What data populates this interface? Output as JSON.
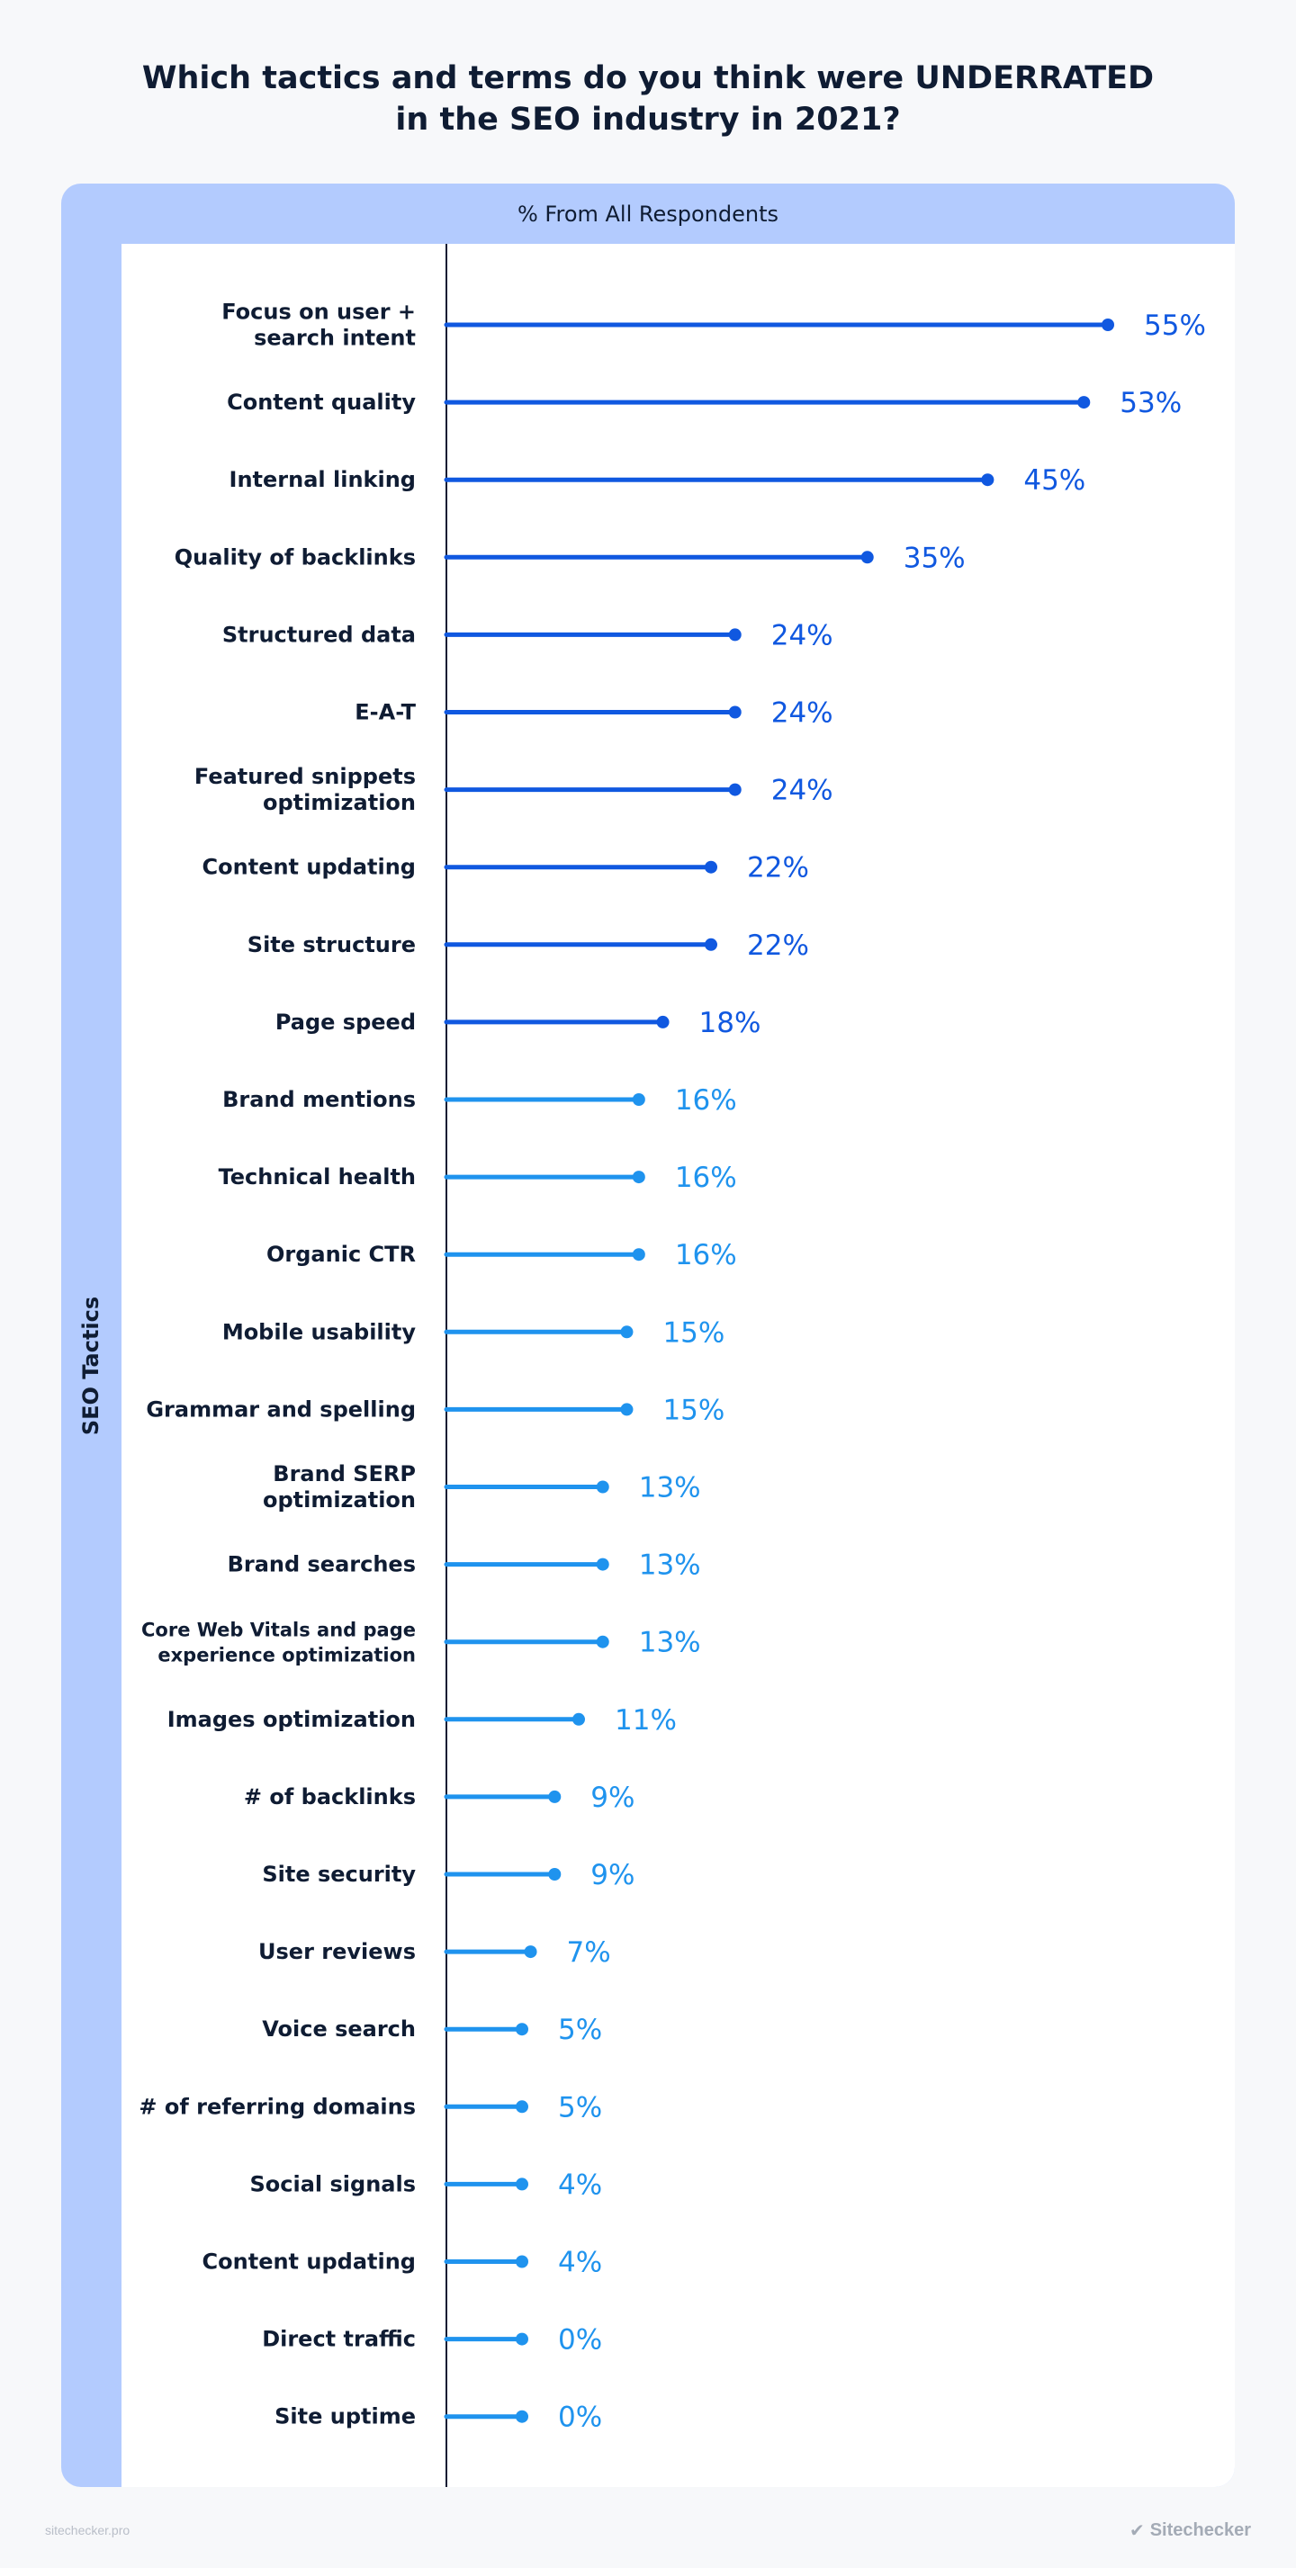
{
  "title_lines": [
    "Which tactics and terms do you think were UNDERRATED",
    "in the SEO industry in 2021?"
  ],
  "header": "% From All Respondents",
  "side_label": "SEO Tactics",
  "footer_left": "sitechecker.pro",
  "footer_right": "Sitechecker",
  "colors": {
    "dark_blue": "#1058e0",
    "light_blue": "#1f93ee",
    "axis": "#0f1c33"
  },
  "chart_data": {
    "type": "bar",
    "categories": [
      [
        "Focus on user +",
        "search intent"
      ],
      [
        "Content quality"
      ],
      [
        "Internal linking"
      ],
      [
        "Quality of backlinks"
      ],
      [
        "Structured data"
      ],
      [
        "E-A-T"
      ],
      [
        "Featured snippets",
        "optimization"
      ],
      [
        "Content updating"
      ],
      [
        "Site structure"
      ],
      [
        "Page speed"
      ],
      [
        "Brand mentions"
      ],
      [
        "Technical health"
      ],
      [
        "Organic CTR"
      ],
      [
        "Mobile usability"
      ],
      [
        "Grammar and spelling"
      ],
      [
        "Brand SERP",
        "optimization"
      ],
      [
        "Brand searches"
      ],
      [
        "Core Web Vitals and page",
        "experience optimization"
      ],
      [
        "Images optimization"
      ],
      [
        "# of backlinks"
      ],
      [
        "Site security"
      ],
      [
        "User reviews"
      ],
      [
        "Voice search"
      ],
      [
        "# of referring domains"
      ],
      [
        "Social signals"
      ],
      [
        "Content updating"
      ],
      [
        "Direct traffic"
      ],
      [
        "Site uptime"
      ]
    ],
    "values": [
      55,
      53,
      45,
      35,
      24,
      24,
      24,
      22,
      22,
      18,
      16,
      16,
      16,
      15,
      15,
      13,
      13,
      13,
      11,
      9,
      9,
      7,
      5,
      5,
      4,
      4,
      0,
      0
    ],
    "value_labels": [
      "55%",
      "53%",
      "45%",
      "35%",
      "24%",
      "24%",
      "24%",
      "22%",
      "22%",
      "18%",
      "16%",
      "16%",
      "16%",
      "15%",
      "15%",
      "13%",
      "13%",
      "13%",
      "11%",
      "9%",
      "9%",
      "7%",
      "5%",
      "5%",
      "4%",
      "4%",
      "0%",
      "0%"
    ],
    "highlight_count": 10,
    "xlim": [
      0,
      55
    ],
    "orientation": "horizontal",
    "grid": false,
    "legend": "none"
  }
}
